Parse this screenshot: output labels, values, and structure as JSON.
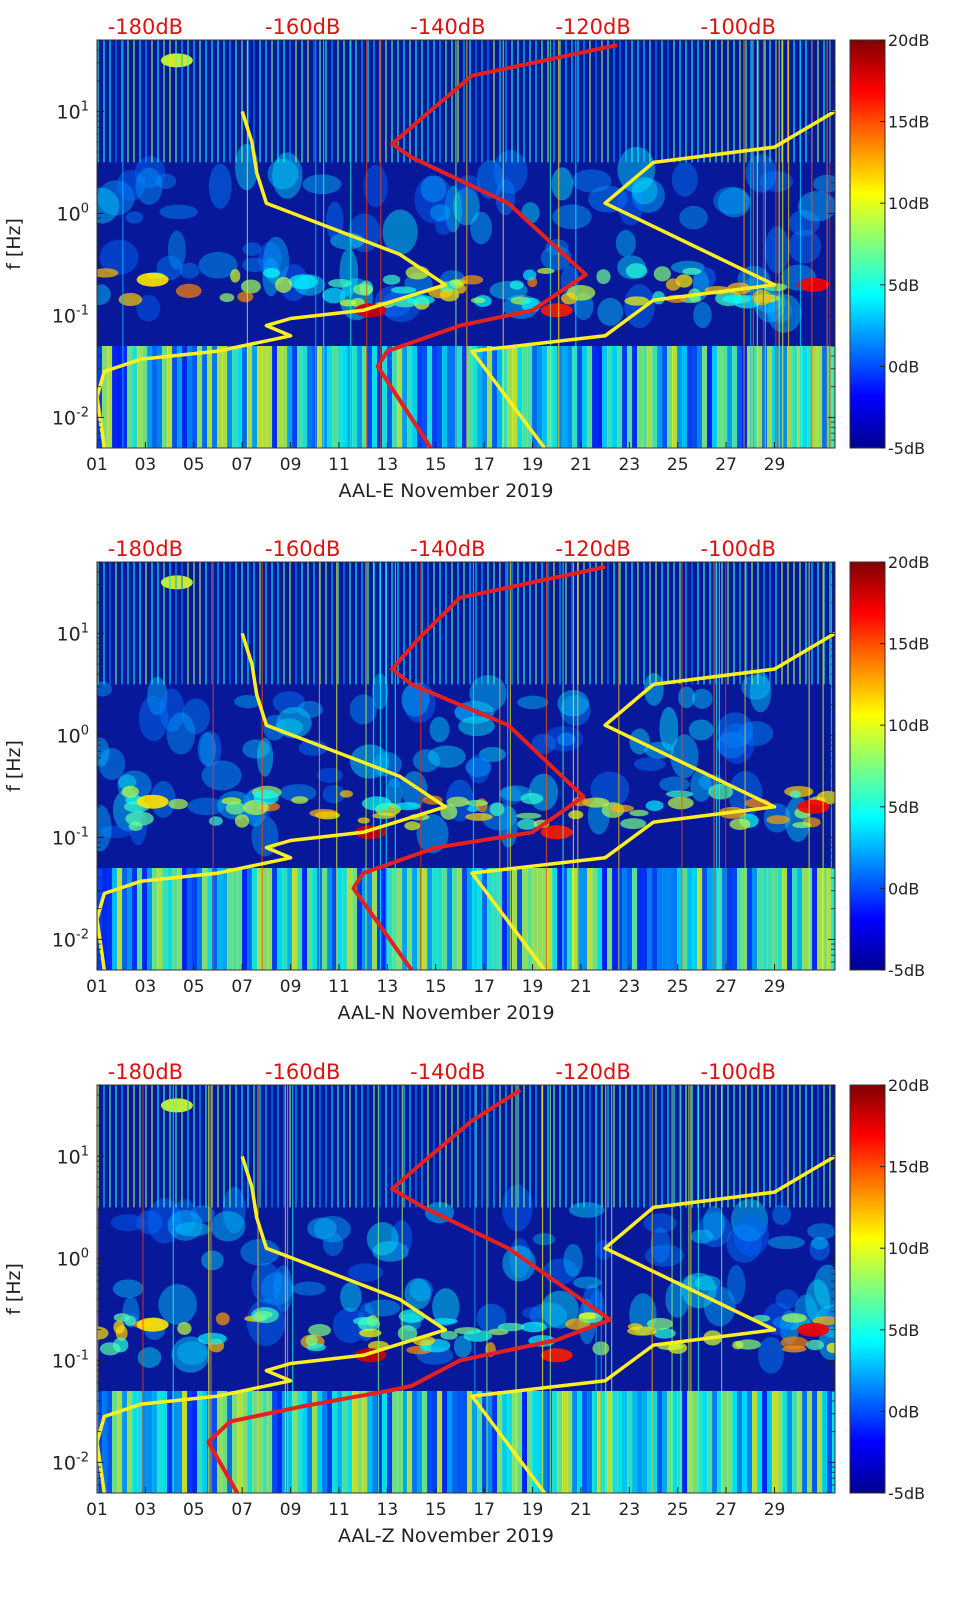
{
  "colors": {
    "psd_overlay": "#e62020",
    "noise_model": "#ffee22",
    "top_axis_text": "#dd1111",
    "axis_text": "#222222",
    "background": "#08189a"
  },
  "colorbar": {
    "min": -5,
    "max": 20,
    "ticks": [
      {
        "value": 20,
        "label": "20dB"
      },
      {
        "value": 15,
        "label": "15dB"
      },
      {
        "value": 10,
        "label": "10dB"
      },
      {
        "value": 5,
        "label": "5dB"
      },
      {
        "value": 0,
        "label": "0dB"
      },
      {
        "value": -5,
        "label": "-5dB"
      }
    ]
  },
  "chart_data": [
    {
      "type": "heatmap",
      "title": "",
      "xlabel": "AAL-E November 2019",
      "ylabel": "f [Hz]",
      "x_unit": "day of November 2019",
      "xlim": [
        1,
        31.5
      ],
      "ylim_log10": [
        -2.3,
        1.7
      ],
      "y_scale": "log",
      "x_tick_values": [
        1,
        3,
        5,
        7,
        9,
        11,
        13,
        15,
        17,
        19,
        21,
        23,
        25,
        27,
        29
      ],
      "x_tick_labels": [
        "01",
        "03",
        "05",
        "07",
        "09",
        "11",
        "13",
        "15",
        "17",
        "19",
        "21",
        "23",
        "25",
        "27",
        "29"
      ],
      "y_tick_values_log10": [
        -2,
        -1,
        0,
        1
      ],
      "y_tick_labels": [
        {
          "base": "10",
          "exp": "-2"
        },
        {
          "base": "10",
          "exp": "-1"
        },
        {
          "base": "10",
          "exp": "0"
        },
        {
          "base": "10",
          "exp": "1"
        }
      ],
      "top_axis": {
        "unit": "dB",
        "tick_values_db": [
          -180,
          -160,
          -140,
          -120,
          -100
        ],
        "tick_labels": [
          "-180dB",
          "-160dB",
          "-140dB",
          "-120dB",
          "-100dB"
        ],
        "x_at_tick_day": [
          3,
          9.5,
          15.5,
          21.5,
          27.5
        ]
      },
      "colorbar_range_db": [
        -5,
        20
      ],
      "series": [
        {
          "name": "noise-model-yellow",
          "points_day_log10f": [
            [
              1.3,
              -2.3
            ],
            [
              1.0,
              -1.8
            ],
            [
              1.3,
              -1.55
            ],
            [
              2.8,
              -1.43
            ],
            [
              6.0,
              -1.35
            ],
            [
              9.0,
              -1.2
            ],
            [
              8.0,
              -1.1
            ],
            [
              9.0,
              -1.03
            ],
            [
              12.0,
              -0.95
            ],
            [
              15.4,
              -0.7
            ],
            [
              13.5,
              -0.4
            ],
            [
              8.0,
              0.1
            ],
            [
              7.6,
              0.4
            ],
            [
              7.4,
              0.7
            ],
            [
              7.0,
              1.0
            ]
          ]
        },
        {
          "name": "noise-model-yellow-right",
          "points_day_log10f": [
            [
              19.5,
              -2.3
            ],
            [
              16.5,
              -1.35
            ],
            [
              22.0,
              -1.2
            ],
            [
              24.0,
              -0.85
            ],
            [
              29.0,
              -0.7
            ],
            [
              22.0,
              0.1
            ],
            [
              24.0,
              0.5
            ],
            [
              29.0,
              0.65
            ],
            [
              31.5,
              1.0
            ]
          ]
        },
        {
          "name": "psd-overlay-red",
          "points_day_log10f": [
            [
              14.8,
              -2.3
            ],
            [
              12.6,
              -1.5
            ],
            [
              13.0,
              -1.35
            ],
            [
              16.0,
              -1.1
            ],
            [
              19.0,
              -0.95
            ],
            [
              21.2,
              -0.6
            ],
            [
              18.0,
              0.1
            ],
            [
              14.0,
              0.55
            ],
            [
              13.2,
              0.68
            ],
            [
              14.5,
              0.95
            ],
            [
              16.5,
              1.35
            ],
            [
              22.5,
              1.65
            ]
          ]
        }
      ]
    },
    {
      "type": "heatmap",
      "title": "",
      "xlabel": "AAL-N November 2019",
      "ylabel": "f [Hz]",
      "x_unit": "day of November 2019",
      "xlim": [
        1,
        31.5
      ],
      "ylim_log10": [
        -2.3,
        1.7
      ],
      "y_scale": "log",
      "x_tick_values": [
        1,
        3,
        5,
        7,
        9,
        11,
        13,
        15,
        17,
        19,
        21,
        23,
        25,
        27,
        29
      ],
      "x_tick_labels": [
        "01",
        "03",
        "05",
        "07",
        "09",
        "11",
        "13",
        "15",
        "17",
        "19",
        "21",
        "23",
        "25",
        "27",
        "29"
      ],
      "y_tick_values_log10": [
        -2,
        -1,
        0,
        1
      ],
      "y_tick_labels": [
        {
          "base": "10",
          "exp": "-2"
        },
        {
          "base": "10",
          "exp": "-1"
        },
        {
          "base": "10",
          "exp": "0"
        },
        {
          "base": "10",
          "exp": "1"
        }
      ],
      "top_axis": {
        "unit": "dB",
        "tick_values_db": [
          -180,
          -160,
          -140,
          -120,
          -100
        ],
        "tick_labels": [
          "-180dB",
          "-160dB",
          "-140dB",
          "-120dB",
          "-100dB"
        ],
        "x_at_tick_day": [
          3,
          9.5,
          15.5,
          21.5,
          27.5
        ]
      },
      "colorbar_range_db": [
        -5,
        20
      ],
      "series": [
        {
          "name": "noise-model-yellow",
          "points_day_log10f": [
            [
              1.3,
              -2.3
            ],
            [
              1.0,
              -1.8
            ],
            [
              1.3,
              -1.55
            ],
            [
              2.8,
              -1.43
            ],
            [
              6.0,
              -1.35
            ],
            [
              9.0,
              -1.2
            ],
            [
              8.0,
              -1.1
            ],
            [
              9.0,
              -1.03
            ],
            [
              12.0,
              -0.95
            ],
            [
              15.4,
              -0.7
            ],
            [
              13.5,
              -0.4
            ],
            [
              8.0,
              0.1
            ],
            [
              7.6,
              0.4
            ],
            [
              7.4,
              0.7
            ],
            [
              7.0,
              1.0
            ]
          ]
        },
        {
          "name": "noise-model-yellow-right",
          "points_day_log10f": [
            [
              19.5,
              -2.3
            ],
            [
              16.5,
              -1.35
            ],
            [
              22.0,
              -1.2
            ],
            [
              24.0,
              -0.85
            ],
            [
              29.0,
              -0.7
            ],
            [
              22.0,
              0.1
            ],
            [
              24.0,
              0.5
            ],
            [
              29.0,
              0.65
            ],
            [
              31.5,
              1.0
            ]
          ]
        },
        {
          "name": "psd-overlay-red",
          "points_day_log10f": [
            [
              14.0,
              -2.3
            ],
            [
              11.6,
              -1.5
            ],
            [
              12.0,
              -1.35
            ],
            [
              15.0,
              -1.1
            ],
            [
              19.0,
              -0.95
            ],
            [
              21.1,
              -0.6
            ],
            [
              18.0,
              0.1
            ],
            [
              14.0,
              0.5
            ],
            [
              13.2,
              0.65
            ],
            [
              14.3,
              0.95
            ],
            [
              16.0,
              1.35
            ],
            [
              22.0,
              1.65
            ]
          ]
        }
      ]
    },
    {
      "type": "heatmap",
      "title": "",
      "xlabel": "AAL-Z November 2019",
      "ylabel": "f [Hz]",
      "x_unit": "day of November 2019",
      "xlim": [
        1,
        31.5
      ],
      "ylim_log10": [
        -2.3,
        1.7
      ],
      "y_scale": "log",
      "x_tick_values": [
        1,
        3,
        5,
        7,
        9,
        11,
        13,
        15,
        17,
        19,
        21,
        23,
        25,
        27,
        29
      ],
      "x_tick_labels": [
        "01",
        "03",
        "05",
        "07",
        "09",
        "11",
        "13",
        "15",
        "17",
        "19",
        "21",
        "23",
        "25",
        "27",
        "29"
      ],
      "y_tick_values_log10": [
        -2,
        -1,
        0,
        1
      ],
      "y_tick_labels": [
        {
          "base": "10",
          "exp": "-2"
        },
        {
          "base": "10",
          "exp": "-1"
        },
        {
          "base": "10",
          "exp": "0"
        },
        {
          "base": "10",
          "exp": "1"
        }
      ],
      "top_axis": {
        "unit": "dB",
        "tick_values_db": [
          -180,
          -160,
          -140,
          -120,
          -100
        ],
        "tick_labels": [
          "-180dB",
          "-160dB",
          "-140dB",
          "-120dB",
          "-100dB"
        ],
        "x_at_tick_day": [
          3,
          9.5,
          15.5,
          21.5,
          27.5
        ]
      },
      "colorbar_range_db": [
        -5,
        20
      ],
      "series": [
        {
          "name": "noise-model-yellow",
          "points_day_log10f": [
            [
              1.3,
              -2.3
            ],
            [
              1.0,
              -1.8
            ],
            [
              1.3,
              -1.55
            ],
            [
              2.8,
              -1.43
            ],
            [
              6.0,
              -1.35
            ],
            [
              9.0,
              -1.2
            ],
            [
              8.0,
              -1.1
            ],
            [
              9.0,
              -1.03
            ],
            [
              12.0,
              -0.95
            ],
            [
              15.4,
              -0.7
            ],
            [
              13.5,
              -0.4
            ],
            [
              8.0,
              0.1
            ],
            [
              7.6,
              0.4
            ],
            [
              7.4,
              0.7
            ],
            [
              7.0,
              1.0
            ]
          ]
        },
        {
          "name": "noise-model-yellow-right",
          "points_day_log10f": [
            [
              19.5,
              -2.3
            ],
            [
              16.5,
              -1.35
            ],
            [
              22.0,
              -1.2
            ],
            [
              24.0,
              -0.85
            ],
            [
              29.0,
              -0.7
            ],
            [
              22.0,
              0.1
            ],
            [
              24.0,
              0.5
            ],
            [
              29.0,
              0.65
            ],
            [
              31.5,
              1.0
            ]
          ]
        },
        {
          "name": "psd-overlay-red",
          "points_day_log10f": [
            [
              6.8,
              -2.3
            ],
            [
              5.6,
              -1.8
            ],
            [
              6.5,
              -1.6
            ],
            [
              9.5,
              -1.45
            ],
            [
              13.0,
              -1.3
            ],
            [
              14.0,
              -1.25
            ],
            [
              16.0,
              -1.0
            ],
            [
              20.0,
              -0.8
            ],
            [
              22.2,
              -0.6
            ],
            [
              18.0,
              0.1
            ],
            [
              14.5,
              0.5
            ],
            [
              13.2,
              0.68
            ],
            [
              14.5,
              0.95
            ],
            [
              16.5,
              1.35
            ],
            [
              18.5,
              1.65
            ]
          ]
        }
      ]
    }
  ]
}
